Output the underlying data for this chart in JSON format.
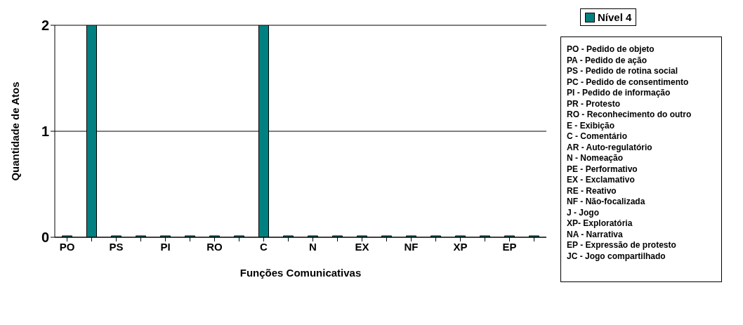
{
  "chart_data": {
    "type": "bar",
    "xlabel": "Funções Comunicativas",
    "ylabel": "Quantidade de Atos",
    "categories": [
      "PO",
      null,
      "PS",
      null,
      "PI",
      null,
      "RO",
      null,
      "C",
      null,
      "N",
      null,
      "EX",
      null,
      "NF",
      null,
      "XP",
      null,
      "EP",
      null
    ],
    "series": [
      {
        "name": "Nível 4",
        "color": "#008080",
        "values": [
          0,
          2,
          0,
          0,
          0,
          0,
          0,
          0,
          2,
          0,
          0,
          0,
          0,
          0,
          0,
          0,
          0,
          0,
          0,
          0
        ]
      }
    ],
    "ylim": [
      0,
      2
    ],
    "yticks": [
      0,
      1,
      2
    ],
    "grid": "y",
    "legend": "top right",
    "annotations": [
      "PO - Pedido de objeto",
      "PA - Pedido de ação",
      "PS - Pedido de rotina social",
      "PC - Pedido de consentimento",
      "PI - Pedido de informação",
      "PR - Protesto",
      "RO - Reconhecimento do outro",
      "E - Exibição",
      "C - Comentário",
      "AR - Auto-regulatório",
      "N - Nomeação",
      "PE - Performativo",
      "EX - Exclamativo",
      "RE - Reativo",
      "NF - Não-focalizada",
      "J - Jogo",
      "XP- Exploratória",
      "NA - Narrativa",
      "EP - Expressão de protesto",
      "JC - Jogo compartilhado"
    ]
  }
}
